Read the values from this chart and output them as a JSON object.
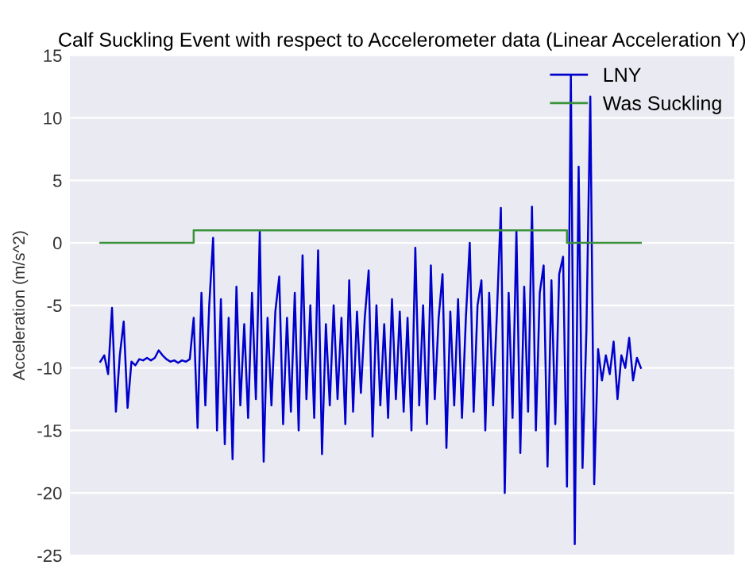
{
  "chart_data": {
    "type": "line",
    "title": "Calf Suckling Event with respect to Accelerometer data (Linear Acceleration Y)",
    "ylabel": "Acceleration (m/s^2)",
    "categories": [
      null,
      null,
      null,
      null,
      null,
      null,
      null,
      null,
      null,
      null,
      null,
      null,
      null,
      null,
      null,
      null,
      null,
      null,
      null,
      null,
      null,
      null,
      null,
      null,
      null,
      null,
      null,
      null,
      null,
      null,
      null,
      null,
      null,
      null,
      null,
      null,
      null,
      null,
      null,
      null,
      null,
      null,
      null,
      null,
      null,
      null,
      null,
      null,
      null,
      null,
      null,
      null,
      null,
      null,
      null,
      null,
      null,
      null,
      null,
      null,
      null,
      null,
      null,
      null,
      null,
      null,
      null,
      null,
      null,
      null,
      null,
      null,
      null,
      null,
      null,
      null,
      null,
      null,
      null,
      null,
      null,
      null,
      null,
      null,
      null,
      null,
      null,
      null,
      null,
      null,
      null,
      null,
      null,
      null,
      null,
      null,
      null,
      null,
      null,
      null,
      null,
      null,
      null,
      null,
      null,
      null,
      null,
      null,
      null,
      null,
      null,
      null,
      null,
      null,
      null,
      null,
      null,
      null,
      null,
      null,
      null,
      null,
      null,
      null,
      null,
      null,
      null,
      null,
      null,
      null,
      null,
      null,
      null,
      null,
      null,
      null,
      null,
      null,
      null,
      null
    ],
    "series": [
      {
        "name": "LNY",
        "color": "#0000cc",
        "values": [
          -9.5,
          -9.0,
          -10.5,
          -5.2,
          -13.5,
          -9.0,
          -6.3,
          -13.2,
          -9.5,
          -9.8,
          -9.3,
          -9.4,
          -9.2,
          -9.4,
          -9.2,
          -8.6,
          -9.0,
          -9.3,
          -9.5,
          -9.4,
          -9.6,
          -9.4,
          -9.5,
          -9.3,
          -6.0,
          -14.8,
          -4.0,
          -13.0,
          -5.0,
          0.4,
          -15.0,
          -4.5,
          -16.1,
          -6.0,
          -17.3,
          -3.5,
          -13.0,
          -6.5,
          -14.0,
          -4.0,
          -12.5,
          0.9,
          -17.5,
          -6.0,
          -13.0,
          -5.5,
          -2.7,
          -14.5,
          -6.0,
          -13.5,
          -4.0,
          -15.0,
          -1.0,
          -12.5,
          -5.0,
          -14.0,
          -0.6,
          -16.9,
          -6.5,
          -13.0,
          -5.0,
          -12.5,
          -6.0,
          -14.5,
          -3.0,
          -13.5,
          -5.5,
          -12.0,
          -6.0,
          -2.2,
          -15.5,
          -5.0,
          -13.0,
          -6.5,
          -14.0,
          -4.5,
          -12.5,
          -5.5,
          -13.5,
          -6.0,
          -15.0,
          -0.4,
          -13.0,
          -5.0,
          -14.5,
          -1.8,
          -12.5,
          -6.0,
          -2.5,
          -16.4,
          -5.5,
          -13.0,
          -4.5,
          -14.0,
          -6.0,
          0.0,
          -13.5,
          -5.0,
          -3.0,
          -15.0,
          -4.0,
          -13.0,
          -5.5,
          2.8,
          -20.0,
          -4.0,
          -14.0,
          1.0,
          -16.8,
          -3.5,
          -13.5,
          2.9,
          -15.0,
          -4.0,
          -1.8,
          -17.9,
          -3.0,
          -14.5,
          -2.5,
          -1.1,
          -19.5,
          13.4,
          -24.1,
          6.1,
          -18.0,
          -7.0,
          11.7,
          -19.3,
          -8.5,
          -11.0,
          -9.0,
          -10.5,
          -7.9,
          -12.5,
          -9.0,
          -10.0,
          -7.6,
          -11.0,
          -9.2,
          -10.0
        ]
      },
      {
        "name": "Was Suckling",
        "type": "step",
        "color": "#3a923a",
        "values": [
          0,
          0,
          0,
          0,
          0,
          0,
          0,
          0,
          0,
          0,
          0,
          0,
          0,
          0,
          0,
          0,
          0,
          0,
          0,
          0,
          0,
          0,
          0,
          0,
          1,
          1,
          1,
          1,
          1,
          1,
          1,
          1,
          1,
          1,
          1,
          1,
          1,
          1,
          1,
          1,
          1,
          1,
          1,
          1,
          1,
          1,
          1,
          1,
          1,
          1,
          1,
          1,
          1,
          1,
          1,
          1,
          1,
          1,
          1,
          1,
          1,
          1,
          1,
          1,
          1,
          1,
          1,
          1,
          1,
          1,
          1,
          1,
          1,
          1,
          1,
          1,
          1,
          1,
          1,
          1,
          1,
          1,
          1,
          1,
          1,
          1,
          1,
          1,
          1,
          1,
          1,
          1,
          1,
          1,
          1,
          1,
          1,
          1,
          1,
          1,
          1,
          1,
          1,
          1,
          1,
          1,
          1,
          1,
          1,
          1,
          1,
          1,
          1,
          1,
          1,
          1,
          1,
          1,
          1,
          1,
          0,
          0,
          0,
          0,
          0,
          0,
          0,
          0,
          0,
          0,
          0,
          0,
          0,
          0,
          0,
          0,
          0,
          0,
          0,
          0
        ]
      }
    ],
    "ylim": [
      -25,
      15
    ],
    "yticks": [
      -25,
      -20,
      -15,
      -10,
      -5,
      0,
      5,
      10,
      15
    ],
    "grid": "y",
    "legend": "top right",
    "tick_labels": "y"
  }
}
